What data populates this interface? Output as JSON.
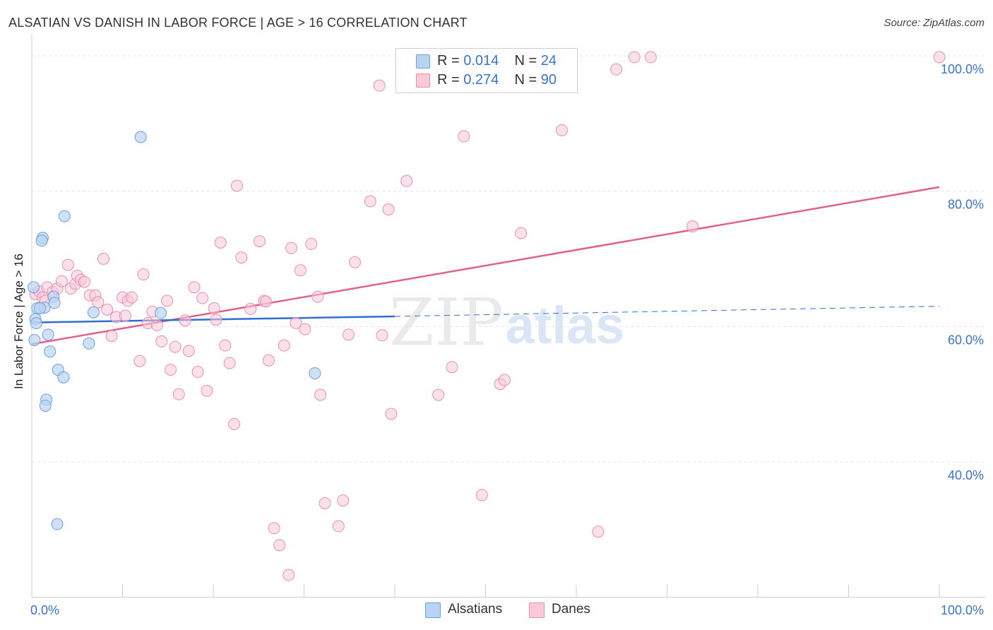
{
  "title": "ALSATIAN VS DANISH IN LABOR FORCE | AGE > 16 CORRELATION CHART",
  "source": "Source: ZipAtlas.com",
  "legend_top": [
    {
      "r_label": "R = ",
      "r_value": "0.014",
      "n_label": "N = ",
      "n_value": "24"
    },
    {
      "r_label": "R = ",
      "r_value": "0.274",
      "n_label": "N = ",
      "n_value": "90"
    }
  ],
  "colors": {
    "alsatians_fill": "#b9d4f3",
    "alsatians_stroke": "#6f9fdb",
    "alsatians_line": "#2f6fcf",
    "danes_fill": "#f9c9d8",
    "danes_stroke": "#ea8fae",
    "danes_line": "#e2608c",
    "grid": "#e6e6e6",
    "tick_text": "#3a74c9"
  },
  "chart_data": {
    "type": "scatter",
    "title": "ALSATIAN VS DANISH IN LABOR FORCE | AGE > 16 CORRELATION CHART",
    "xlabel": "",
    "ylabel": "In Labor Force | Age > 16",
    "xlim": [
      0,
      100
    ],
    "ylim": [
      20,
      102
    ],
    "x_tick_labels": [
      {
        "value": 0,
        "label": "0.0%"
      },
      {
        "value": 100,
        "label": "100.0%"
      }
    ],
    "y_tick_labels": [
      {
        "value": 40,
        "label": "40.0%"
      },
      {
        "value": 60,
        "label": "60.0%"
      },
      {
        "value": 80,
        "label": "80.0%"
      },
      {
        "value": 100,
        "label": "100.0%"
      }
    ],
    "grid": true,
    "series": [
      {
        "name": "Alsatians",
        "R": 0.014,
        "N": 24,
        "points": [
          [
            0.2,
            65.8
          ],
          [
            0.6,
            62.7
          ],
          [
            0.4,
            61.1
          ],
          [
            0.5,
            60.5
          ],
          [
            0.3,
            58.0
          ],
          [
            1.2,
            73.1
          ],
          [
            1.1,
            72.7
          ],
          [
            1.4,
            62.8
          ],
          [
            1.8,
            58.8
          ],
          [
            2.0,
            56.3
          ],
          [
            1.6,
            49.2
          ],
          [
            1.5,
            48.3
          ],
          [
            2.4,
            64.4
          ],
          [
            2.5,
            63.5
          ],
          [
            2.9,
            53.6
          ],
          [
            3.5,
            52.5
          ],
          [
            2.8,
            30.8
          ],
          [
            3.6,
            76.3
          ],
          [
            6.3,
            57.5
          ],
          [
            6.8,
            62.1
          ],
          [
            12.0,
            88.0
          ],
          [
            14.2,
            62.0
          ],
          [
            31.2,
            53.1
          ],
          [
            0.9,
            62.7
          ]
        ],
        "trend_solid": [
          [
            0,
            60.6
          ],
          [
            40,
            61.5
          ]
        ],
        "trend_dashed": [
          [
            40,
            61.5
          ],
          [
            100,
            63.0
          ]
        ]
      },
      {
        "name": "Danes",
        "R": 0.274,
        "N": 90,
        "points": [
          [
            0.4,
            64.8
          ],
          [
            0.8,
            65.2
          ],
          [
            1.2,
            64.3
          ],
          [
            1.5,
            63.8
          ],
          [
            1.7,
            65.8
          ],
          [
            2.3,
            65.1
          ],
          [
            2.8,
            65.6
          ],
          [
            3.3,
            66.7
          ],
          [
            4.0,
            69.1
          ],
          [
            4.3,
            65.6
          ],
          [
            4.8,
            66.3
          ],
          [
            5.0,
            67.5
          ],
          [
            5.4,
            66.9
          ],
          [
            5.8,
            66.6
          ],
          [
            6.4,
            64.6
          ],
          [
            7.0,
            64.6
          ],
          [
            7.3,
            63.6
          ],
          [
            7.9,
            70.0
          ],
          [
            8.3,
            62.5
          ],
          [
            8.8,
            58.6
          ],
          [
            9.3,
            61.4
          ],
          [
            10.0,
            64.3
          ],
          [
            10.3,
            61.6
          ],
          [
            10.6,
            63.8
          ],
          [
            11.0,
            64.3
          ],
          [
            11.9,
            54.9
          ],
          [
            12.3,
            67.7
          ],
          [
            12.8,
            60.5
          ],
          [
            13.3,
            62.2
          ],
          [
            13.8,
            60.2
          ],
          [
            14.3,
            57.8
          ],
          [
            14.9,
            63.8
          ],
          [
            15.3,
            53.6
          ],
          [
            15.8,
            57.0
          ],
          [
            16.2,
            50.0
          ],
          [
            16.9,
            60.9
          ],
          [
            17.3,
            56.4
          ],
          [
            17.9,
            65.8
          ],
          [
            18.3,
            53.3
          ],
          [
            18.8,
            64.2
          ],
          [
            19.3,
            50.5
          ],
          [
            20.1,
            62.7
          ],
          [
            20.3,
            61.0
          ],
          [
            20.8,
            72.4
          ],
          [
            21.3,
            57.2
          ],
          [
            21.8,
            54.6
          ],
          [
            22.3,
            45.6
          ],
          [
            22.6,
            80.8
          ],
          [
            23.1,
            70.2
          ],
          [
            24.1,
            62.6
          ],
          [
            25.1,
            72.6
          ],
          [
            25.6,
            63.8
          ],
          [
            25.8,
            63.7
          ],
          [
            26.1,
            55.0
          ],
          [
            26.7,
            30.2
          ],
          [
            27.3,
            27.7
          ],
          [
            27.8,
            57.2
          ],
          [
            28.3,
            23.3
          ],
          [
            28.6,
            71.6
          ],
          [
            29.1,
            60.5
          ],
          [
            29.6,
            68.3
          ],
          [
            30.1,
            59.6
          ],
          [
            30.8,
            72.2
          ],
          [
            31.5,
            64.4
          ],
          [
            31.8,
            49.9
          ],
          [
            32.3,
            33.9
          ],
          [
            33.8,
            30.5
          ],
          [
            34.3,
            34.3
          ],
          [
            34.9,
            58.8
          ],
          [
            35.6,
            69.5
          ],
          [
            37.3,
            78.5
          ],
          [
            38.3,
            95.6
          ],
          [
            38.6,
            58.7
          ],
          [
            39.3,
            77.3
          ],
          [
            39.6,
            47.1
          ],
          [
            41.3,
            81.5
          ],
          [
            44.8,
            49.9
          ],
          [
            46.3,
            54.0
          ],
          [
            47.6,
            88.1
          ],
          [
            49.6,
            35.1
          ],
          [
            51.6,
            51.5
          ],
          [
            52.1,
            52.1
          ],
          [
            53.9,
            73.8
          ],
          [
            58.4,
            89.0
          ],
          [
            62.4,
            29.7
          ],
          [
            64.4,
            98.0
          ],
          [
            66.4,
            99.8
          ],
          [
            68.2,
            99.8
          ],
          [
            72.8,
            74.8
          ],
          [
            100.0,
            99.8
          ]
        ],
        "trend_solid": [
          [
            0,
            57.4
          ],
          [
            100,
            80.6
          ]
        ]
      }
    ]
  },
  "legend_bottom": [
    "Alsatians",
    "Danes"
  ],
  "watermark": {
    "part1": "ZIP",
    "part2": "atlas"
  }
}
